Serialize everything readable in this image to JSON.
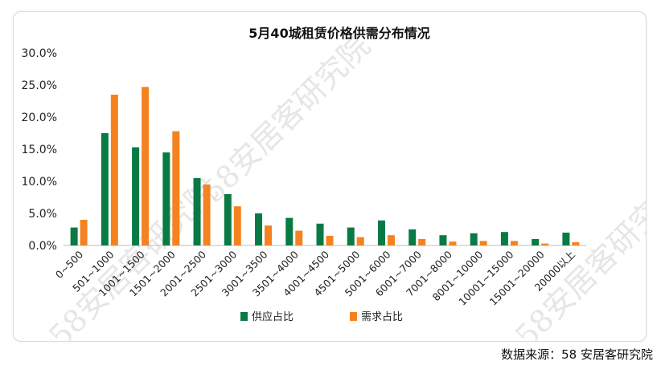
{
  "source_note": "数据来源：58 安居客研究院",
  "watermark_text": "58安居客研究院",
  "colors": {
    "supply": "#0a7a45",
    "demand": "#f58220",
    "axis": "#bfbfbf"
  },
  "chart_data": {
    "type": "bar",
    "title": "5月40城租赁价格供需分布情况",
    "xlabel": "",
    "ylabel": "",
    "ylim": [
      0,
      30
    ],
    "yticks": [
      "0.0%",
      "5.0%",
      "10.0%",
      "15.0%",
      "20.0%",
      "25.0%",
      "30.0%"
    ],
    "grid": false,
    "legend_position": "bottom",
    "categories": [
      "0~500",
      "501~1000",
      "1001~1500",
      "1501~2000",
      "2001~2500",
      "2501~3000",
      "3001~3500",
      "3501~4000",
      "4001~4500",
      "4501~5000",
      "5001~6000",
      "6001~7000",
      "7001~8000",
      "8001~10000",
      "10001~15000",
      "15001~20000",
      "20000以上"
    ],
    "series": [
      {
        "name": "供应占比",
        "values": [
          2.8,
          17.5,
          15.3,
          14.5,
          10.5,
          8.0,
          5.0,
          4.3,
          3.4,
          2.8,
          3.9,
          2.5,
          1.6,
          1.9,
          2.1,
          1.0,
          2.0
        ]
      },
      {
        "name": "需求占比",
        "values": [
          4.0,
          23.5,
          24.7,
          17.8,
          9.5,
          6.1,
          3.1,
          2.3,
          1.5,
          1.3,
          1.6,
          1.0,
          0.6,
          0.7,
          0.7,
          0.3,
          0.5
        ]
      }
    ]
  }
}
